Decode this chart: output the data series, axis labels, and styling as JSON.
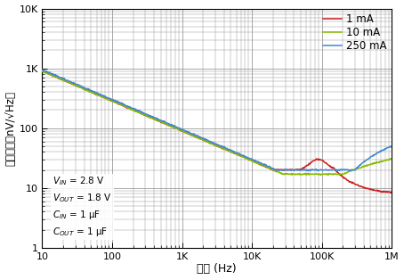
{
  "xlabel": "頻率 (Hz)",
  "ylabel": "输出噪声（nV/√Hz）",
  "xlim": [
    10,
    1000000
  ],
  "ylim": [
    1,
    10000
  ],
  "xtick_labels": [
    "10",
    "100",
    "1K",
    "10K",
    "100K",
    "1M"
  ],
  "xtick_vals": [
    10,
    100,
    1000,
    10000,
    100000,
    1000000
  ],
  "ytick_labels": [
    "1",
    "10",
    "100",
    "1K",
    "10K"
  ],
  "ytick_vals": [
    1,
    10,
    100,
    1000,
    10000
  ],
  "legend_labels": [
    "1 mA",
    "10 mA",
    "250 mA"
  ],
  "line_colors": [
    "#cc2020",
    "#88bb00",
    "#4488cc"
  ],
  "background_color": "#ffffff",
  "grid_color": "#999999",
  "ann_line1": "V",
  "ann_line2": "V",
  "ann_line3": "C",
  "ann_line4": "C"
}
